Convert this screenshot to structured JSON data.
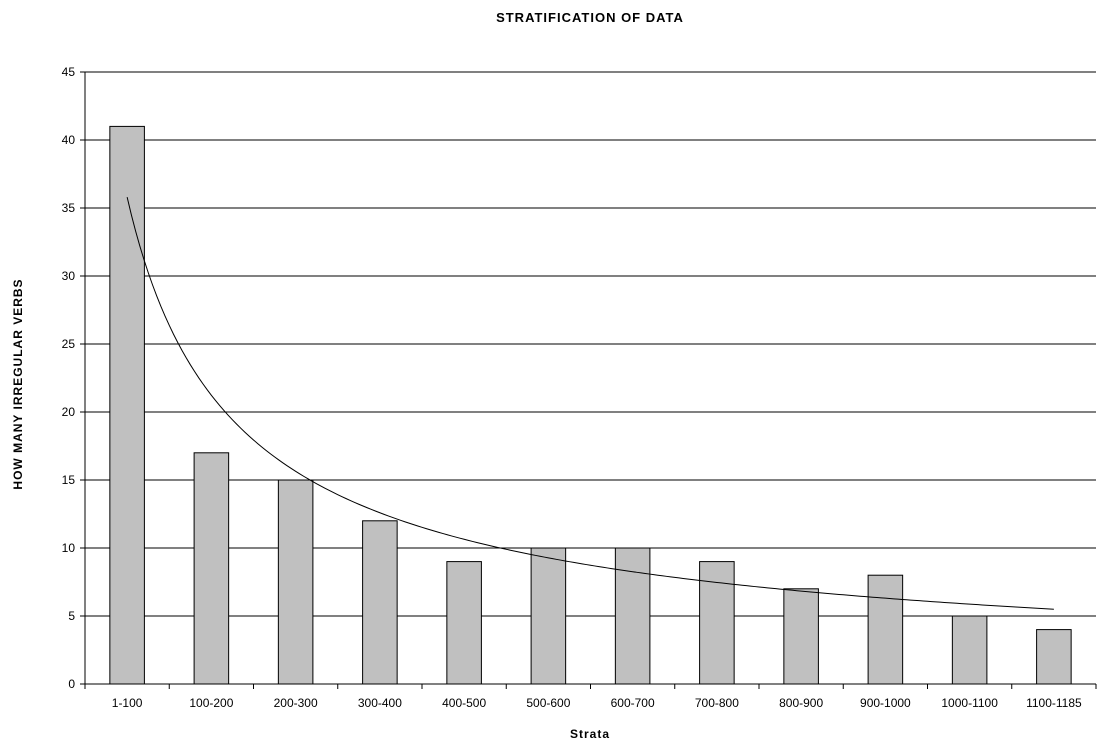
{
  "chart_data": {
    "type": "bar",
    "title": "STRATIFICATION OF DATA",
    "xlabel": "Strata",
    "ylabel": "HOW MANY IRREGULAR VERBS",
    "ylim": [
      0,
      45
    ],
    "yticks": [
      0,
      5,
      10,
      15,
      20,
      25,
      30,
      35,
      40,
      45
    ],
    "categories": [
      "1-100",
      "100-200",
      "200-300",
      "300-400",
      "400-500",
      "500-600",
      "600-700",
      "700-800",
      "800-900",
      "900-1000",
      "1000-1100",
      "1100-1185"
    ],
    "series": [
      {
        "type": "bar",
        "values": [
          41,
          17,
          15,
          12,
          9,
          10,
          10,
          9,
          7,
          8,
          5,
          4
        ]
      },
      {
        "type": "line",
        "trendline": "power",
        "values": [
          35.8,
          20.8,
          15.3,
          12.3,
          10.5,
          9.2,
          8.2,
          7.5,
          6.9,
          6.4,
          6.0,
          5.5
        ]
      }
    ],
    "grid": true,
    "colors": {
      "bar_fill": "#c0c0c0",
      "bar_stroke": "#000000",
      "line": "#000000",
      "grid": "#000000"
    }
  }
}
